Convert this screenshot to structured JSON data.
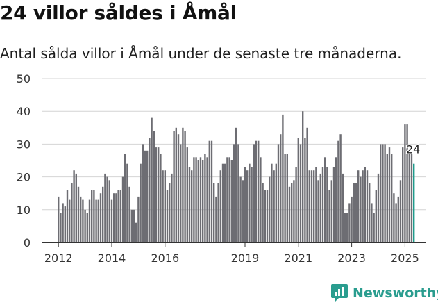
{
  "header": {
    "title": "24 villor såldes i Åmål",
    "subtitle": "Antal sålda villor i Åmål under de senaste tre månaderna."
  },
  "brand": {
    "name": "Newsworthy"
  },
  "colors": {
    "bar": "#6d6d73",
    "highlight": "#1f9b8c",
    "grid": "#d4d4d4",
    "text": "#222222",
    "brand": "#2a9d8f"
  },
  "chart_data": {
    "type": "bar",
    "title": "24 villor såldes i Åmål",
    "xlabel": "",
    "ylabel": "",
    "ylim": [
      0,
      50
    ],
    "yticks": [
      0,
      10,
      20,
      30,
      40,
      50
    ],
    "xtick_labels": [
      "2012",
      "2014",
      "2016",
      "2019",
      "2021",
      "2023",
      "2025"
    ],
    "annotation": {
      "text": "24",
      "value": 24
    },
    "start": "2012-01",
    "frequency": "monthly",
    "values": [
      14,
      9,
      12,
      11,
      16,
      13,
      18,
      22,
      21,
      17,
      14,
      13,
      10,
      9,
      13,
      16,
      16,
      13,
      13,
      15,
      17,
      21,
      20,
      19,
      13,
      15,
      15,
      16,
      16,
      20,
      27,
      24,
      17,
      10,
      10,
      6,
      14,
      24,
      30,
      28,
      28,
      32,
      38,
      34,
      29,
      29,
      27,
      22,
      22,
      16,
      18,
      21,
      34,
      35,
      33,
      30,
      35,
      34,
      29,
      23,
      22,
      26,
      26,
      25,
      26,
      25,
      27,
      26,
      31,
      31,
      18,
      14,
      18,
      22,
      24,
      24,
      26,
      26,
      25,
      30,
      35,
      30,
      20,
      19,
      23,
      22,
      24,
      23,
      30,
      31,
      31,
      26,
      18,
      16,
      16,
      20,
      24,
      22,
      24,
      30,
      33,
      39,
      27,
      27,
      17,
      18,
      19,
      23,
      32,
      30,
      40,
      32,
      35,
      22,
      22,
      22,
      23,
      19,
      21,
      23,
      26,
      23,
      16,
      19,
      23,
      26,
      31,
      33,
      21,
      9,
      9,
      12,
      14,
      18,
      18,
      22,
      20,
      22,
      23,
      22,
      18,
      12,
      9,
      16,
      21,
      30,
      30,
      30,
      27,
      29,
      27,
      15,
      12,
      14,
      19,
      29,
      36,
      36,
      27,
      27,
      24
    ]
  }
}
